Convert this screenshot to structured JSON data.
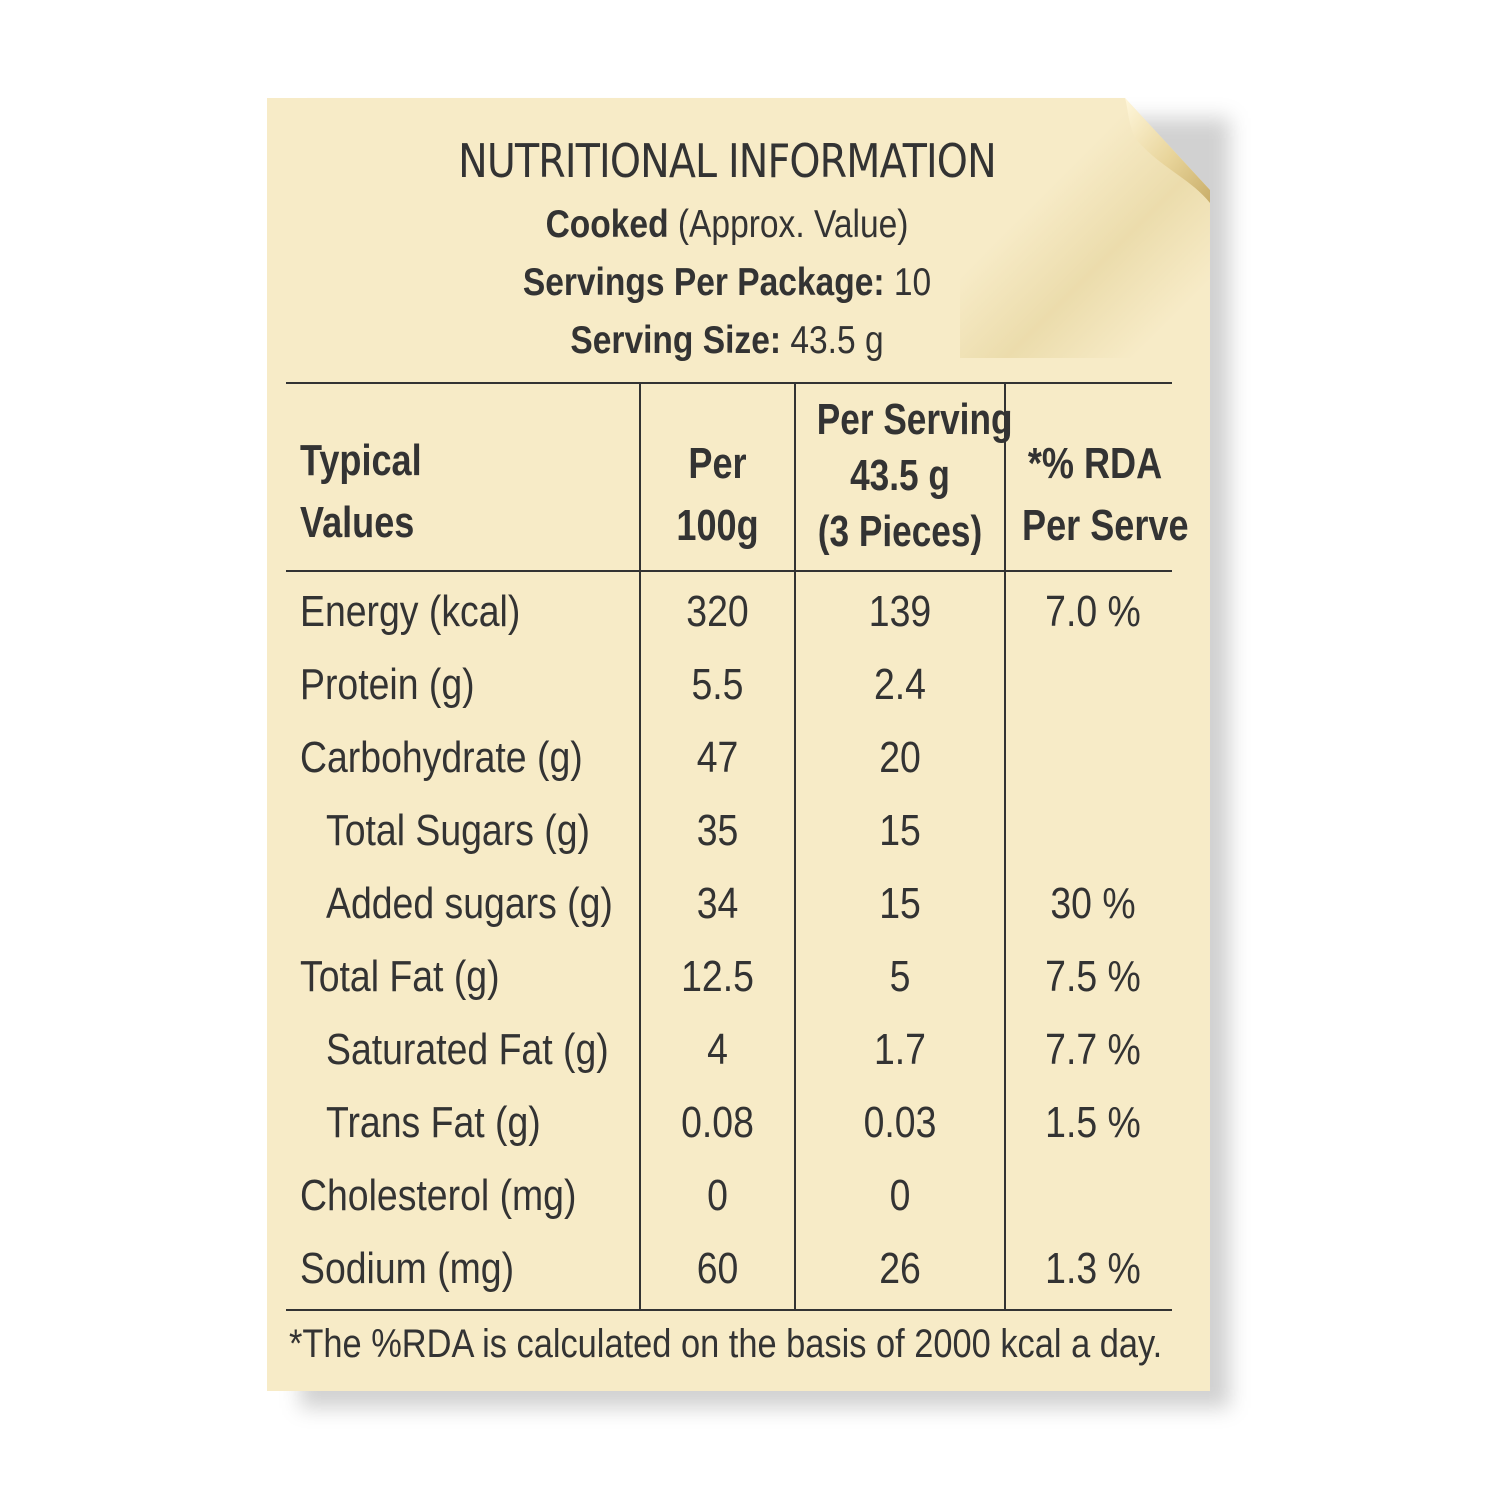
{
  "label": {
    "title": "NUTRITIONAL INFORMATION",
    "basis_bold": "Cooked",
    "basis_rest": "(Approx. Value)",
    "servings_label": "Servings Per Package:",
    "servings_value": "10",
    "serving_size_label": "Serving Size:",
    "serving_size_value": "43.5 g"
  },
  "table": {
    "headers": {
      "col1": [
        "Typical",
        "Values"
      ],
      "col2": [
        "Per",
        "100g"
      ],
      "col3": [
        "Per Serving",
        "43.5 g",
        "(3 Pieces)"
      ],
      "col4": [
        "*% RDA",
        "Per Serve"
      ]
    },
    "rows": [
      {
        "name": "Energy (kcal)",
        "per100": "320",
        "perServing": "139",
        "rda": "7.0 %",
        "indent": false
      },
      {
        "name": "Protein (g)",
        "per100": "5.5",
        "perServing": "2.4",
        "rda": "",
        "indent": false
      },
      {
        "name": "Carbohydrate (g)",
        "per100": "47",
        "perServing": "20",
        "rda": "",
        "indent": false
      },
      {
        "name": "Total Sugars (g)",
        "per100": "35",
        "perServing": "15",
        "rda": "",
        "indent": true
      },
      {
        "name": "Added sugars (g)",
        "per100": "34",
        "perServing": "15",
        "rda": "30 %",
        "indent": true
      },
      {
        "name": "Total Fat (g)",
        "per100": "12.5",
        "perServing": "5",
        "rda": "7.5 %",
        "indent": false
      },
      {
        "name": "Saturated Fat (g)",
        "per100": "4",
        "perServing": "1.7",
        "rda": "7.7 %",
        "indent": true
      },
      {
        "name": "Trans Fat (g)",
        "per100": "0.08",
        "perServing": "0.03",
        "rda": "1.5 %",
        "indent": true
      },
      {
        "name": "Cholesterol (mg)",
        "per100": "0",
        "perServing": "0",
        "rda": "",
        "indent": false
      },
      {
        "name": "Sodium (mg)",
        "per100": "60",
        "perServing": "26",
        "rda": "1.3 %",
        "indent": false
      }
    ]
  },
  "footnote": "*The %RDA is calculated on the basis of 2000 kcal a day.",
  "colors": {
    "paper": "#f7ebc7",
    "ink": "#333333",
    "curl": "#d9c48a"
  }
}
